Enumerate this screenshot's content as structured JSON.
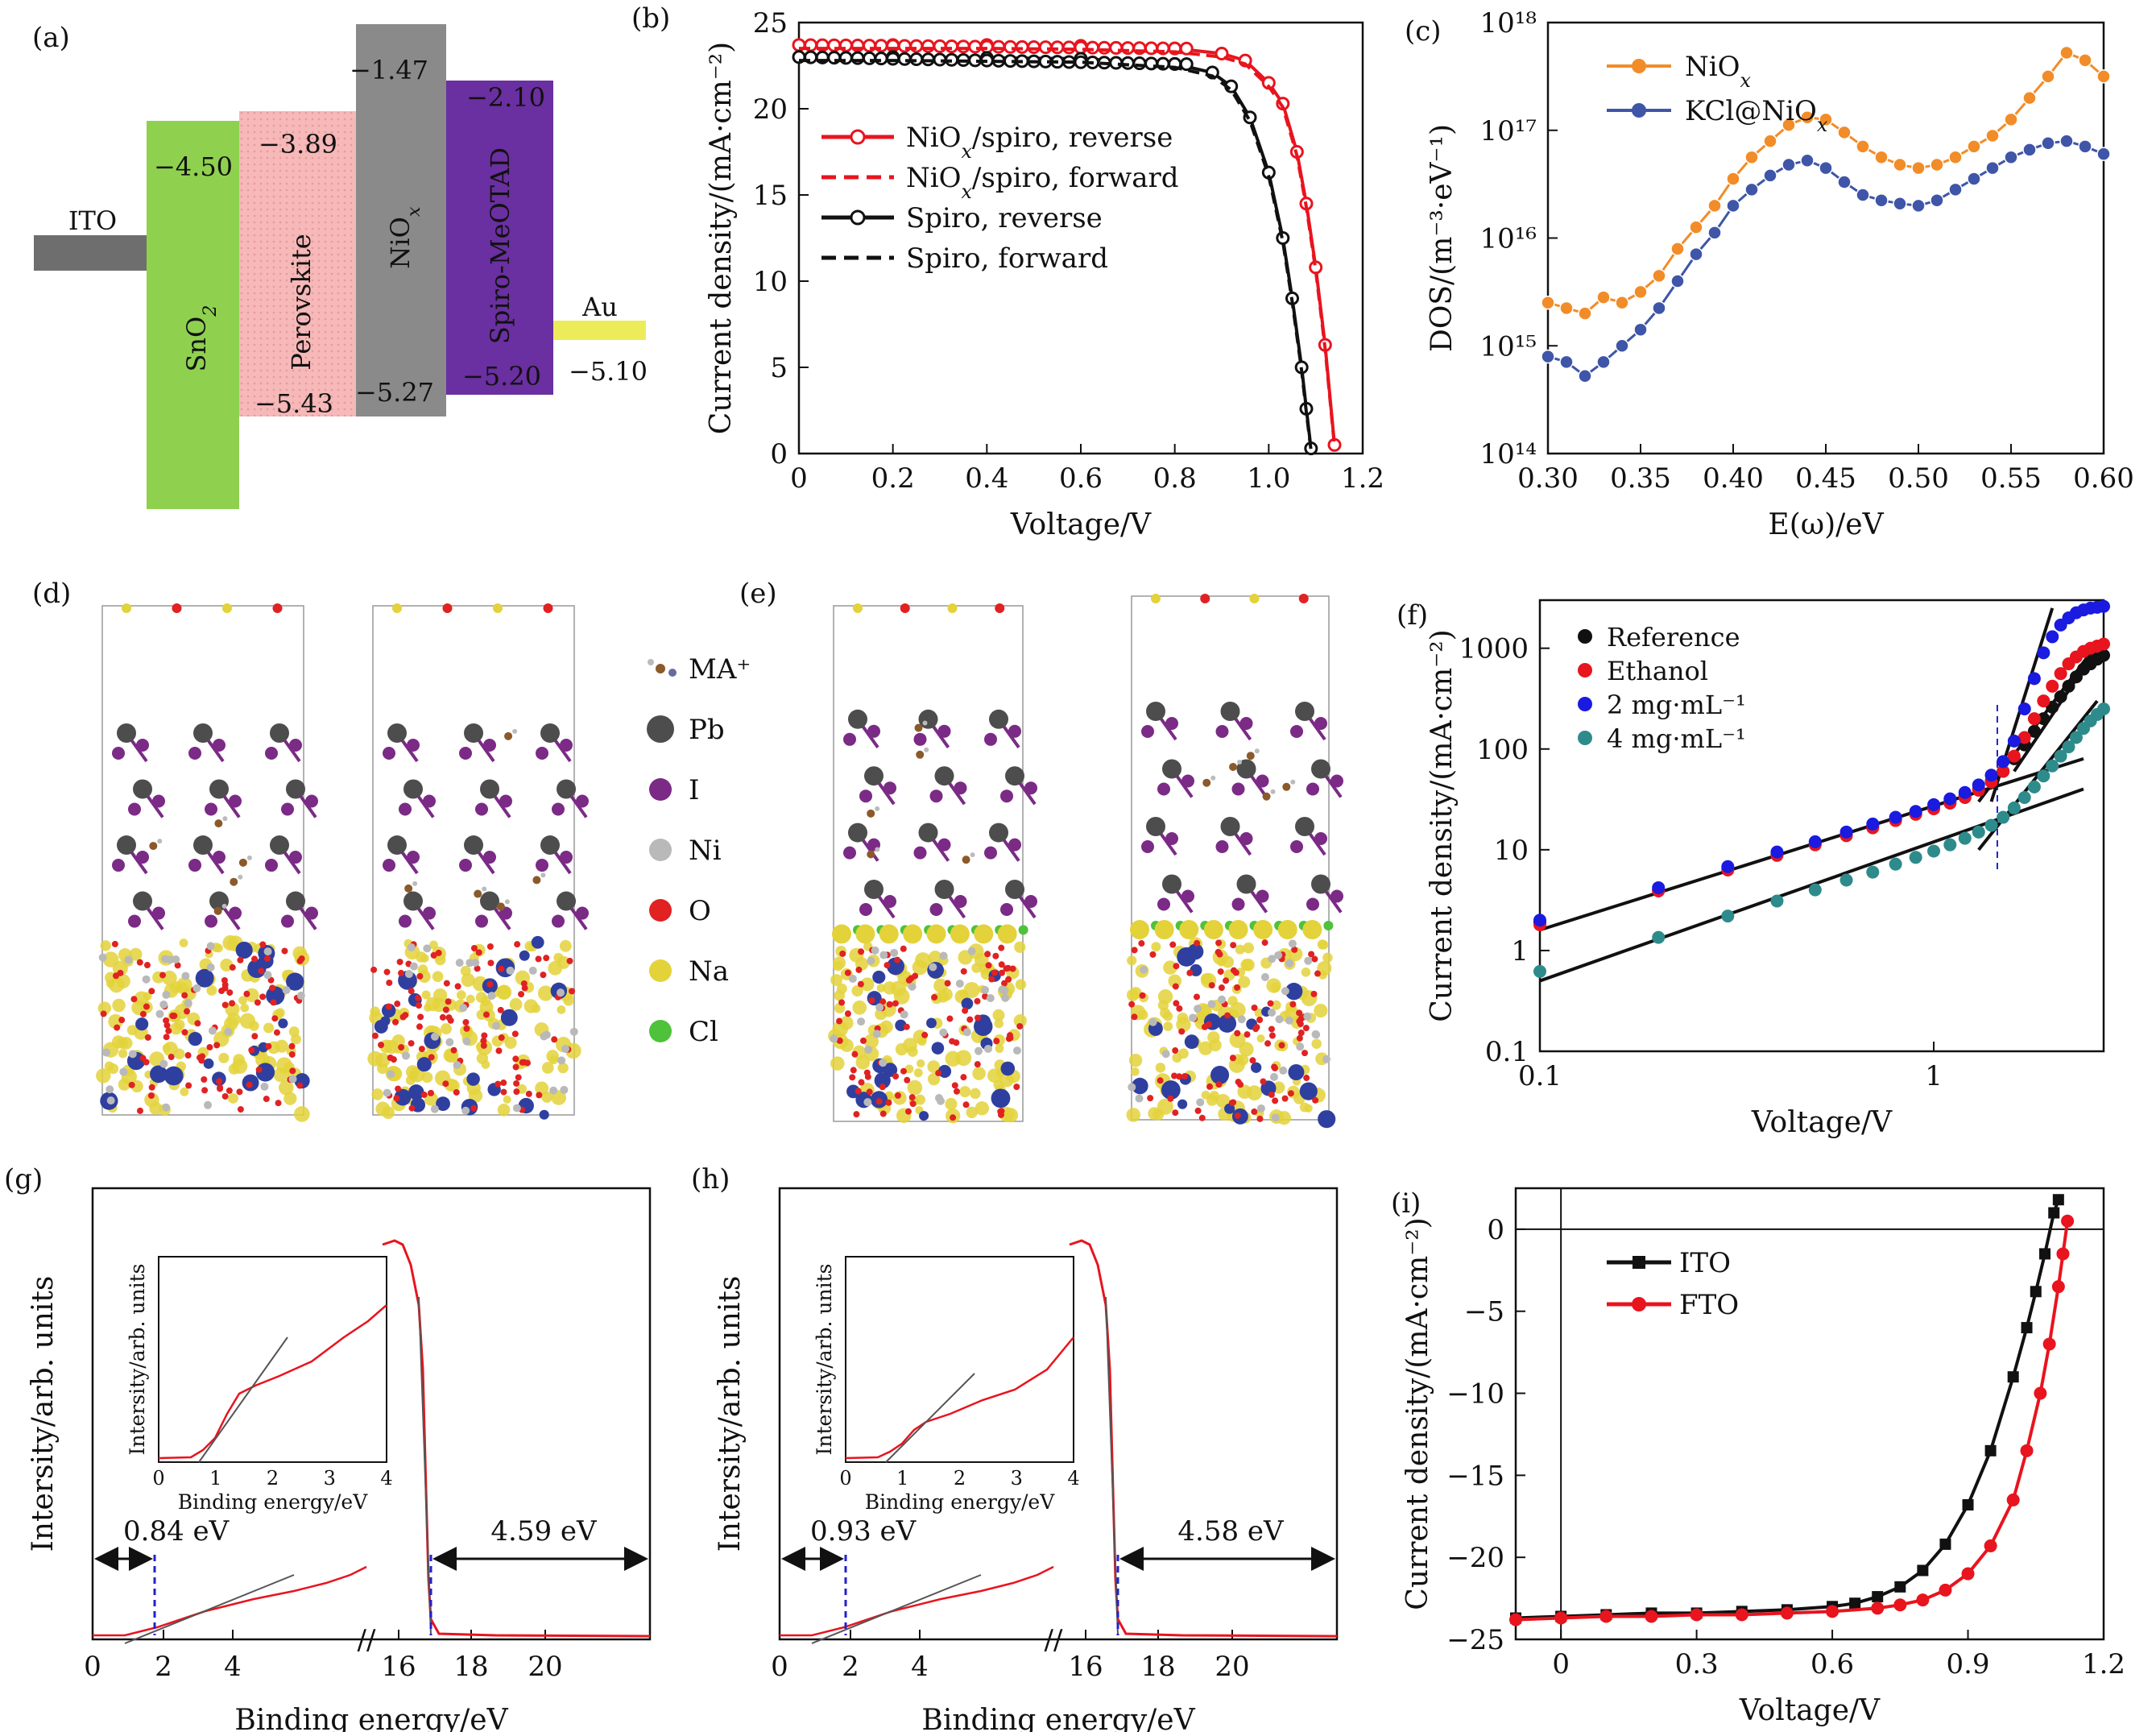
{
  "panels": {
    "a": {
      "label": "(a)",
      "layers": [
        {
          "name": "ITO",
          "top": "",
          "bottom": "",
          "color": "#6e6e6e",
          "label_color": "#111"
        },
        {
          "name": "SnO2",
          "top": "−4.50",
          "bottom": "",
          "color": "#8fd14f",
          "label_color": "#111"
        },
        {
          "name": "Perovskite",
          "top": "−3.89",
          "bottom": "−5.43",
          "color": "#f6b6b6",
          "label_color": "#111"
        },
        {
          "name": "NiOx",
          "top": "−1.47",
          "bottom": "−5.27",
          "color": "#8a8a8a",
          "label_color": "#e02020"
        },
        {
          "name": "Spiro-MeOTAD",
          "top": "−2.10",
          "bottom": "−5.20",
          "color": "#6a2fa0",
          "label_color": "#111"
        },
        {
          "name": "Au",
          "top": "",
          "bottom": "−5.10",
          "color": "#ecec5a",
          "label_color": "#111"
        }
      ]
    },
    "d": {
      "label": "(d)",
      "legend": [
        {
          "name": "MA⁺",
          "color": "#8b5a2b"
        },
        {
          "name": "Pb",
          "color": "#4d4d4d"
        },
        {
          "name": "I",
          "color": "#7b2a86"
        },
        {
          "name": "Ni",
          "color": "#b9b9b9"
        },
        {
          "name": "O",
          "color": "#e02222"
        },
        {
          "name": "Na",
          "color": "#e3d23a"
        },
        {
          "name": "Cl",
          "color": "#4ec23a"
        }
      ]
    },
    "e": {
      "label": "(e)"
    },
    "g": {
      "inset_xlabel": "Binding energy/eV",
      "inset_ylabel": "Intersity/arb. units",
      "arrow_left": "0.84 eV",
      "arrow_right": "4.59 eV"
    },
    "h": {
      "inset_xlabel": "Binding energy/eV",
      "inset_ylabel": "Intersity/arb. units",
      "arrow_left": "0.93 eV",
      "arrow_right": "4.58 eV"
    }
  },
  "chart_data": [
    {
      "id": "b",
      "label": "(b)",
      "type": "line",
      "xlabel": "Voltage/V",
      "ylabel": "Current density/(mA·cm⁻²)",
      "xlim": [
        0,
        1.2
      ],
      "ylim": [
        0,
        25
      ],
      "xticks": [
        "0",
        "0.2",
        "0.4",
        "0.6",
        "0.8",
        "1.0",
        "1.2"
      ],
      "yticks": [
        "0",
        "5",
        "10",
        "15",
        "20",
        "25"
      ],
      "series": [
        {
          "name": "NiOx/spiro, reverse",
          "color": "#e8141e",
          "style": "marker",
          "x": [
            0,
            0.2,
            0.4,
            0.6,
            0.8,
            0.9,
            0.95,
            1.0,
            1.03,
            1.06,
            1.08,
            1.1,
            1.12,
            1.14
          ],
          "y": [
            23.7,
            23.7,
            23.7,
            23.65,
            23.5,
            23.2,
            22.8,
            21.5,
            20.3,
            17.5,
            14.5,
            10.8,
            6.3,
            0.5
          ]
        },
        {
          "name": "NiOx/spiro, forward",
          "color": "#e8141e",
          "style": "dash",
          "x": [
            0,
            0.2,
            0.4,
            0.6,
            0.8,
            0.9,
            0.95,
            1.0,
            1.03,
            1.06,
            1.08,
            1.1,
            1.12,
            1.14
          ],
          "y": [
            23.5,
            23.5,
            23.5,
            23.45,
            23.3,
            23.0,
            22.6,
            21.3,
            20.1,
            17.3,
            14.3,
            10.6,
            6.1,
            0.4
          ]
        },
        {
          "name": "Spiro, reverse",
          "color": "#111111",
          "style": "marker",
          "x": [
            0,
            0.2,
            0.4,
            0.6,
            0.8,
            0.88,
            0.92,
            0.96,
            1.0,
            1.03,
            1.05,
            1.07,
            1.08,
            1.09
          ],
          "y": [
            23.0,
            23.0,
            22.95,
            22.9,
            22.6,
            22.1,
            21.3,
            19.5,
            16.3,
            12.5,
            9.0,
            5.0,
            2.6,
            0.3
          ]
        },
        {
          "name": "Spiro, forward",
          "color": "#111111",
          "style": "dash",
          "x": [
            0,
            0.2,
            0.4,
            0.6,
            0.8,
            0.88,
            0.92,
            0.96,
            1.0,
            1.03,
            1.05,
            1.07,
            1.08,
            1.09
          ],
          "y": [
            22.8,
            22.8,
            22.75,
            22.7,
            22.4,
            21.9,
            21.1,
            19.3,
            16.1,
            12.3,
            8.8,
            4.8,
            2.4,
            0.2
          ]
        }
      ]
    },
    {
      "id": "c",
      "label": "(c)",
      "type": "line",
      "xlabel": "E(ω)/eV",
      "ylabel": "DOS/(m⁻³·eV⁻¹)",
      "xlim": [
        0.3,
        0.6
      ],
      "ylim": [
        14,
        18
      ],
      "yscale": "log",
      "xticks": [
        "0.30",
        "0.35",
        "0.40",
        "0.45",
        "0.50",
        "0.55",
        "0.60"
      ],
      "yticks": [
        "10¹⁴",
        "10¹⁵",
        "10¹⁶",
        "10¹⁷",
        "10¹⁸"
      ],
      "series": [
        {
          "name": "NiOx",
          "color": "#f28c28",
          "x": [
            0.3,
            0.31,
            0.32,
            0.33,
            0.34,
            0.35,
            0.36,
            0.37,
            0.38,
            0.39,
            0.4,
            0.41,
            0.42,
            0.43,
            0.44,
            0.45,
            0.46,
            0.47,
            0.48,
            0.49,
            0.5,
            0.51,
            0.52,
            0.53,
            0.54,
            0.55,
            0.56,
            0.57,
            0.58,
            0.59,
            0.6
          ],
          "y": [
            15.4,
            15.35,
            15.3,
            15.45,
            15.4,
            15.5,
            15.65,
            15.9,
            16.1,
            16.3,
            16.55,
            16.75,
            16.9,
            17.05,
            17.12,
            17.1,
            16.98,
            16.85,
            16.75,
            16.68,
            16.65,
            16.68,
            16.75,
            16.85,
            16.95,
            17.1,
            17.3,
            17.5,
            17.72,
            17.65,
            17.5
          ]
        },
        {
          "name": "KCl@NiOx",
          "color": "#3f55a8",
          "x": [
            0.3,
            0.31,
            0.32,
            0.33,
            0.34,
            0.35,
            0.36,
            0.37,
            0.38,
            0.39,
            0.4,
            0.41,
            0.42,
            0.43,
            0.44,
            0.45,
            0.46,
            0.47,
            0.48,
            0.49,
            0.5,
            0.51,
            0.52,
            0.53,
            0.54,
            0.55,
            0.56,
            0.57,
            0.58,
            0.59,
            0.6
          ],
          "y": [
            14.9,
            14.85,
            14.72,
            14.85,
            15.0,
            15.15,
            15.35,
            15.6,
            15.85,
            16.05,
            16.3,
            16.45,
            16.58,
            16.68,
            16.72,
            16.65,
            16.52,
            16.4,
            16.35,
            16.32,
            16.3,
            16.35,
            16.45,
            16.55,
            16.65,
            16.75,
            16.82,
            16.88,
            16.9,
            16.85,
            16.78
          ]
        }
      ]
    },
    {
      "id": "f",
      "label": "(f)",
      "type": "scatter",
      "xlabel": "Voltage/V",
      "ylabel": "Current density/(mA·cm⁻²)",
      "xlim": [
        0.1,
        2.7
      ],
      "ylim": [
        0.1,
        3000
      ],
      "xscale": "log",
      "yscale": "log",
      "xticks": [
        "0.1",
        "1"
      ],
      "yticks": [
        "0.1",
        "1",
        "10",
        "100",
        "1000"
      ],
      "series": [
        {
          "name": "Reference",
          "color": "#111111",
          "x": [
            0.1,
            0.2,
            0.3,
            0.4,
            0.5,
            0.6,
            0.7,
            0.8,
            0.9,
            1.0,
            1.1,
            1.2,
            1.3,
            1.4,
            1.5,
            1.6,
            1.7,
            1.8,
            1.9,
            2.0,
            2.1,
            2.2,
            2.3,
            2.4,
            2.5,
            2.6,
            2.7
          ],
          "y": [
            1.9,
            4.0,
            6.5,
            9.0,
            11.5,
            14,
            17,
            20,
            23,
            26,
            30,
            34,
            40,
            48,
            60,
            80,
            110,
            150,
            200,
            260,
            330,
            420,
            520,
            620,
            700,
            780,
            850
          ]
        },
        {
          "name": "Ethanol",
          "color": "#e8141e",
          "x": [
            0.1,
            0.2,
            0.3,
            0.4,
            0.5,
            0.6,
            0.7,
            0.8,
            0.9,
            1.0,
            1.1,
            1.2,
            1.3,
            1.4,
            1.5,
            1.6,
            1.7,
            1.8,
            1.9,
            2.0,
            2.1,
            2.2,
            2.3,
            2.4,
            2.5,
            2.6,
            2.7
          ],
          "y": [
            1.8,
            3.9,
            6.3,
            8.8,
            11.2,
            13.8,
            16.5,
            19.5,
            22.5,
            25.5,
            29,
            33,
            39,
            47,
            60,
            85,
            130,
            200,
            300,
            420,
            560,
            700,
            820,
            930,
            1000,
            1050,
            1100
          ]
        },
        {
          "name": "2 mg·mL⁻¹",
          "color": "#1a1ae0",
          "x": [
            0.1,
            0.2,
            0.3,
            0.4,
            0.5,
            0.6,
            0.7,
            0.8,
            0.9,
            1.0,
            1.1,
            1.2,
            1.3,
            1.4,
            1.5,
            1.6,
            1.7,
            1.8,
            1.9,
            2.0,
            2.1,
            2.2,
            2.3,
            2.4,
            2.5,
            2.6,
            2.7
          ],
          "y": [
            2.0,
            4.2,
            6.8,
            9.5,
            12,
            15,
            18,
            21,
            24,
            28,
            32,
            37,
            44,
            55,
            75,
            120,
            250,
            500,
            900,
            1300,
            1700,
            2000,
            2250,
            2400,
            2500,
            2550,
            2600
          ]
        },
        {
          "name": "4 mg·mL⁻¹",
          "color": "#2e8b8b",
          "x": [
            0.1,
            0.2,
            0.3,
            0.4,
            0.5,
            0.6,
            0.7,
            0.8,
            0.9,
            1.0,
            1.1,
            1.2,
            1.3,
            1.4,
            1.5,
            1.6,
            1.7,
            1.8,
            1.9,
            2.0,
            2.1,
            2.2,
            2.3,
            2.4,
            2.5,
            2.6,
            2.7
          ],
          "y": [
            0.62,
            1.35,
            2.2,
            3.1,
            4.0,
            5.0,
            6.0,
            7.2,
            8.4,
            9.7,
            11.2,
            13,
            15,
            17.5,
            21,
            26,
            33,
            42,
            54,
            68,
            85,
            105,
            130,
            160,
            190,
            220,
            250
          ]
        }
      ]
    },
    {
      "id": "g",
      "label": "(g)",
      "type": "line",
      "xlabel": "Binding energy/eV",
      "ylabel": "Intersity/arb. units",
      "xticks": [
        "0",
        "2",
        "4",
        "16",
        "18",
        "20"
      ],
      "inset_xticks": [
        "0",
        "1",
        "2",
        "3",
        "4"
      ]
    },
    {
      "id": "h",
      "label": "(h)",
      "type": "line",
      "xlabel": "Binding energy/eV",
      "ylabel": "Intersity/arb. units",
      "xticks": [
        "0",
        "2",
        "4",
        "16",
        "18",
        "20"
      ],
      "inset_xticks": [
        "0",
        "1",
        "2",
        "3",
        "4"
      ]
    },
    {
      "id": "i",
      "label": "(i)",
      "type": "line",
      "xlabel": "Voltage/V",
      "ylabel": "Current density/(mA·cm⁻²)",
      "xlim": [
        -0.1,
        1.2
      ],
      "ylim": [
        -25,
        2.5
      ],
      "xticks": [
        "0",
        "0.3",
        "0.6",
        "0.9",
        "1.2"
      ],
      "yticks": [
        "−25",
        "−20",
        "−15",
        "−10",
        "−5",
        "0"
      ],
      "series": [
        {
          "name": "ITO",
          "color": "#111111",
          "marker": "square",
          "x": [
            -0.1,
            0.0,
            0.1,
            0.2,
            0.3,
            0.4,
            0.5,
            0.6,
            0.65,
            0.7,
            0.75,
            0.8,
            0.85,
            0.9,
            0.95,
            1.0,
            1.03,
            1.05,
            1.07,
            1.09,
            1.1
          ],
          "y": [
            -23.7,
            -23.6,
            -23.5,
            -23.4,
            -23.4,
            -23.3,
            -23.2,
            -23.0,
            -22.8,
            -22.4,
            -21.8,
            -20.8,
            -19.2,
            -16.8,
            -13.5,
            -9.0,
            -6.0,
            -3.8,
            -1.5,
            1.0,
            1.8
          ]
        },
        {
          "name": "FTO",
          "color": "#e8141e",
          "marker": "circle",
          "x": [
            -0.1,
            0.0,
            0.1,
            0.2,
            0.3,
            0.4,
            0.5,
            0.6,
            0.7,
            0.75,
            0.8,
            0.85,
            0.9,
            0.95,
            1.0,
            1.03,
            1.06,
            1.08,
            1.1,
            1.11,
            1.12
          ],
          "y": [
            -23.8,
            -23.7,
            -23.6,
            -23.6,
            -23.5,
            -23.5,
            -23.4,
            -23.3,
            -23.1,
            -22.9,
            -22.6,
            -22.0,
            -21.0,
            -19.3,
            -16.5,
            -13.5,
            -10.0,
            -7.0,
            -3.5,
            -1.5,
            0.5
          ]
        }
      ]
    }
  ]
}
